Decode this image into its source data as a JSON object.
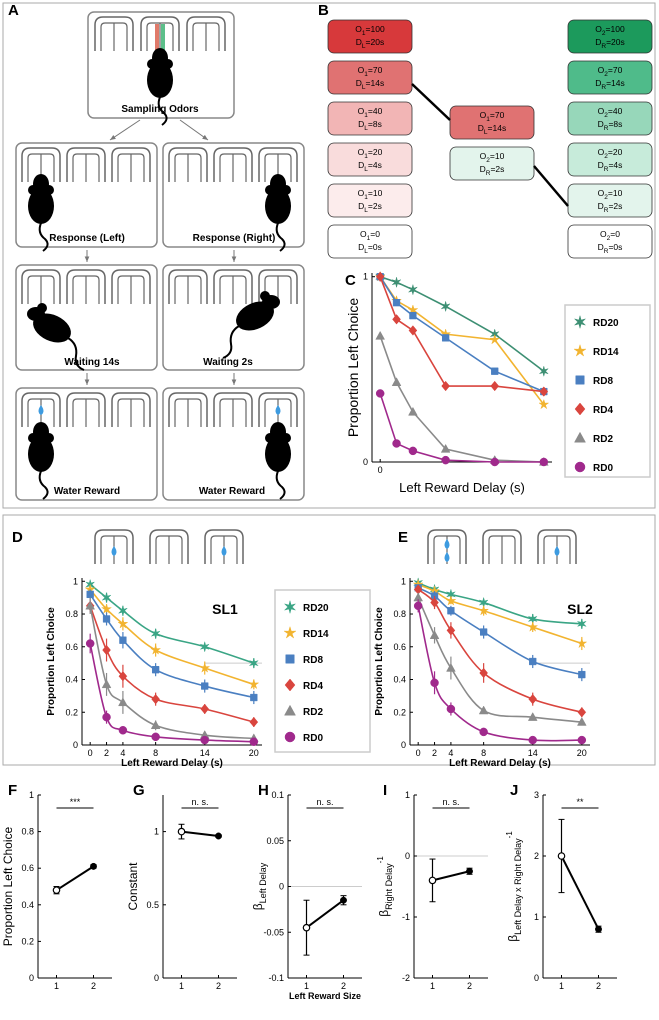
{
  "panel_labels": [
    "A",
    "B",
    "C",
    "D",
    "E",
    "F",
    "G",
    "H",
    "I",
    "J"
  ],
  "panel_a": {
    "labels": [
      "Sampling Odors",
      "Response (Left)",
      "Response (Right)",
      "Waiting 14s",
      "Waiting 2s",
      "Water Reward",
      "Water Reward"
    ]
  },
  "panel_b": {
    "left": [
      {
        "line1": [
          "O",
          "1",
          "=100"
        ],
        "line2": [
          "D",
          "L",
          "=20s"
        ],
        "color": "#d7393b"
      },
      {
        "line1": [
          "O",
          "1",
          "=70"
        ],
        "line2": [
          "D",
          "L",
          "=14s"
        ],
        "color": "#e07272"
      },
      {
        "line1": [
          "O",
          "1",
          "=40"
        ],
        "line2": [
          "D",
          "L",
          "=8s"
        ],
        "color": "#f2b5b5"
      },
      {
        "line1": [
          "O",
          "1",
          "=20"
        ],
        "line2": [
          "D",
          "L",
          "=4s"
        ],
        "color": "#f9dcdc"
      },
      {
        "line1": [
          "O",
          "1",
          "=10"
        ],
        "line2": [
          "D",
          "L",
          "=2s"
        ],
        "color": "#fcecec"
      },
      {
        "line1": [
          "O",
          "1",
          "=0"
        ],
        "line2": [
          "D",
          "L",
          "=0s"
        ],
        "color": "#ffffff"
      }
    ],
    "middle": [
      {
        "line1": [
          "O",
          "1",
          "=70"
        ],
        "line2": [
          "D",
          "L",
          "=14s"
        ],
        "color": "#e07272"
      },
      {
        "line1": [
          "O",
          "2",
          "=10"
        ],
        "line2": [
          "D",
          "R",
          "=2s"
        ],
        "color": "#e3f4ec"
      }
    ],
    "right": [
      {
        "line1": [
          "O",
          "2",
          "=100"
        ],
        "line2": [
          "D",
          "R",
          "=20s"
        ],
        "color": "#1c9a5c"
      },
      {
        "line1": [
          "O",
          "2",
          "=70"
        ],
        "line2": [
          "D",
          "R",
          "=14s"
        ],
        "color": "#4fbb8a"
      },
      {
        "line1": [
          "O",
          "2",
          "=40"
        ],
        "line2": [
          "D",
          "R",
          "=8s"
        ],
        "color": "#97d7ba"
      },
      {
        "line1": [
          "O",
          "2",
          "=20"
        ],
        "line2": [
          "D",
          "R",
          "=4s"
        ],
        "color": "#c7ebda"
      },
      {
        "line1": [
          "O",
          "2",
          "=10"
        ],
        "line2": [
          "D",
          "R",
          "=2s"
        ],
        "color": "#e3f4ec"
      },
      {
        "line1": [
          "O",
          "2",
          "=0"
        ],
        "line2": [
          "D",
          "R",
          "=0s"
        ],
        "color": "#ffffff"
      }
    ]
  },
  "chart_data": [
    {
      "type": "line",
      "ylabel": "Proportion Left Choice",
      "xlabel": "Left Reward Delay (s)",
      "x": [
        0,
        2,
        4,
        8,
        14,
        20
      ],
      "xlim": [
        -1,
        21
      ],
      "xticks": [
        0
      ],
      "ylim": [
        0,
        1.02
      ],
      "yticks": [
        0,
        1
      ],
      "legend": "right",
      "series": [
        {
          "name": "RD20",
          "color": "#3d8f73",
          "marker": "star6",
          "values": [
            1,
            0.97,
            0.93,
            0.84,
            0.69,
            0.49
          ]
        },
        {
          "name": "RD14",
          "color": "#f2b430",
          "marker": "star",
          "values": [
            1,
            0.87,
            0.82,
            0.69,
            0.66,
            0.31
          ]
        },
        {
          "name": "RD8",
          "color": "#4a7fc1",
          "marker": "square",
          "values": [
            1,
            0.86,
            0.79,
            0.67,
            0.49,
            0.38
          ]
        },
        {
          "name": "RD4",
          "color": "#d9453e",
          "marker": "diamond",
          "values": [
            1,
            0.77,
            0.71,
            0.41,
            0.41,
            0.38
          ]
        },
        {
          "name": "RD2",
          "color": "#8a8a8a",
          "marker": "triangle",
          "values": [
            0.68,
            0.43,
            0.27,
            0.07,
            0.01,
            0
          ]
        },
        {
          "name": "RD0",
          "color": "#a0298c",
          "marker": "circle",
          "values": [
            0.37,
            0.1,
            0.06,
            0.01,
            0,
            0
          ]
        }
      ]
    },
    {
      "type": "line",
      "title": "SL1",
      "smooth": true,
      "ylabel": "Proportion Left Choice",
      "xlabel": "Left Reward Delay (s)",
      "x": [
        0,
        2,
        4,
        8,
        14,
        20
      ],
      "xlim": [
        -1,
        21
      ],
      "xticks": [
        0,
        2,
        4,
        8,
        14,
        20
      ],
      "ylim": [
        0,
        1.02
      ],
      "yticks": [
        0,
        0.2,
        0.4,
        0.6,
        0.8,
        1
      ],
      "ref_line": 0.5,
      "legend": "right",
      "series": [
        {
          "name": "RD20",
          "color": "#3aa585",
          "marker": "star6",
          "values": [
            0.98,
            0.9,
            0.82,
            0.68,
            0.6,
            0.5
          ],
          "errors": [
            0.02,
            0.03,
            0.03,
            0.03,
            0.02,
            0.03
          ]
        },
        {
          "name": "RD14",
          "color": "#f2b430",
          "marker": "star",
          "values": [
            0.95,
            0.83,
            0.74,
            0.58,
            0.47,
            0.37
          ],
          "errors": [
            0.02,
            0.03,
            0.04,
            0.04,
            0.04,
            0.03
          ]
        },
        {
          "name": "RD8",
          "color": "#4a7fc1",
          "marker": "square",
          "values": [
            0.92,
            0.77,
            0.64,
            0.46,
            0.36,
            0.29
          ],
          "errors": [
            0.03,
            0.04,
            0.05,
            0.04,
            0.04,
            0.04
          ]
        },
        {
          "name": "RD4",
          "color": "#d9453e",
          "marker": "diamond",
          "values": [
            0.85,
            0.58,
            0.42,
            0.28,
            0.22,
            0.14
          ],
          "errors": [
            0.04,
            0.07,
            0.07,
            0.04,
            0.03,
            0.03
          ]
        },
        {
          "name": "RD2",
          "color": "#8a8a8a",
          "marker": "triangle",
          "values": [
            0.85,
            0.37,
            0.26,
            0.12,
            0.06,
            0.04
          ],
          "errors": [
            0.05,
            0.07,
            0.07,
            0.03,
            0.02,
            0.02
          ]
        },
        {
          "name": "RD0",
          "color": "#a0298c",
          "marker": "circle",
          "values": [
            0.62,
            0.17,
            0.09,
            0.05,
            0.03,
            0.02
          ],
          "errors": [
            0.06,
            0.04,
            0.02,
            0.02,
            0.01,
            0.01
          ]
        }
      ]
    },
    {
      "type": "line",
      "title": "SL2",
      "smooth": true,
      "ylabel": "Proportion Left Choice",
      "xlabel": "Left Reward Delay (s)",
      "x": [
        0,
        2,
        4,
        8,
        14,
        20
      ],
      "xlim": [
        -1,
        21
      ],
      "xticks": [
        0,
        2,
        4,
        8,
        14,
        20
      ],
      "ylim": [
        0,
        1.02
      ],
      "yticks": [
        0,
        0.2,
        0.4,
        0.6,
        0.8,
        1
      ],
      "ref_line": 0.5,
      "series": [
        {
          "name": "RD20",
          "color": "#3aa585",
          "marker": "star6",
          "values": [
            0.99,
            0.95,
            0.92,
            0.87,
            0.77,
            0.74
          ],
          "errors": [
            0.01,
            0.02,
            0.02,
            0.02,
            0.03,
            0.03
          ]
        },
        {
          "name": "RD14",
          "color": "#f2b430",
          "marker": "star",
          "values": [
            0.98,
            0.94,
            0.88,
            0.82,
            0.72,
            0.62
          ],
          "errors": [
            0.01,
            0.02,
            0.02,
            0.03,
            0.03,
            0.04
          ]
        },
        {
          "name": "RD8",
          "color": "#4a7fc1",
          "marker": "square",
          "values": [
            0.96,
            0.91,
            0.82,
            0.69,
            0.51,
            0.43
          ],
          "errors": [
            0.02,
            0.03,
            0.03,
            0.04,
            0.04,
            0.04
          ]
        },
        {
          "name": "RD4",
          "color": "#d9453e",
          "marker": "diamond",
          "values": [
            0.95,
            0.87,
            0.7,
            0.44,
            0.28,
            0.2
          ],
          "errors": [
            0.02,
            0.04,
            0.05,
            0.06,
            0.04,
            0.03
          ]
        },
        {
          "name": "RD2",
          "color": "#8a8a8a",
          "marker": "triangle",
          "values": [
            0.9,
            0.67,
            0.47,
            0.21,
            0.17,
            0.14
          ],
          "errors": [
            0.03,
            0.05,
            0.07,
            0.02,
            0.02,
            0.02
          ]
        },
        {
          "name": "RD0",
          "color": "#a0298c",
          "marker": "circle",
          "values": [
            0.85,
            0.38,
            0.22,
            0.08,
            0.03,
            0.03
          ],
          "errors": [
            0.04,
            0.07,
            0.04,
            0.01,
            0.01,
            0.01
          ]
        }
      ]
    },
    {
      "type": "line",
      "ylabel": "Proportion Left Choice",
      "x": [
        1,
        2
      ],
      "xlim": [
        0.5,
        2.5
      ],
      "xticks": [
        1,
        2
      ],
      "ylim": [
        0,
        1
      ],
      "yticks": [
        0,
        0.2,
        0.4,
        0.6,
        0.8,
        1
      ],
      "annotation": "***",
      "open_markers": [
        0
      ],
      "series": [
        {
          "color": "#000000",
          "marker": "circle",
          "values": [
            0.48,
            0.61
          ],
          "errors": [
            0.02,
            0.01
          ]
        }
      ]
    },
    {
      "type": "line",
      "ylabel": "Constant",
      "x": [
        1,
        2
      ],
      "xlim": [
        0.5,
        2.5
      ],
      "xticks": [
        1,
        2
      ],
      "ylim": [
        0,
        1.25
      ],
      "yticks": [
        0,
        0.5,
        1
      ],
      "annotation": "n. s.",
      "open_markers": [
        0
      ],
      "series": [
        {
          "color": "#000000",
          "marker": "circle",
          "values": [
            1,
            0.97
          ],
          "errors": [
            0.05,
            0.01
          ]
        }
      ]
    },
    {
      "type": "line",
      "ylabel": {
        "symbol": "β",
        "subscript": "Left Delay"
      },
      "xlabel": "Left Reward Size",
      "x": [
        1,
        2
      ],
      "xlim": [
        0.5,
        2.5
      ],
      "xticks": [
        1,
        2
      ],
      "ylim": [
        -0.1,
        0.1
      ],
      "yticks": [
        -0.1,
        -0.05,
        0,
        0.05,
        0.1
      ],
      "ref_line": 0,
      "annotation": "n. s.",
      "open_markers": [
        0
      ],
      "series": [
        {
          "color": "#000000",
          "marker": "circle",
          "values": [
            -0.045,
            -0.015
          ],
          "errors": [
            0.03,
            0.005
          ]
        }
      ]
    },
    {
      "type": "line",
      "ylabel": {
        "symbol": "β",
        "subscript": "Right Delay",
        "superscript": "-1"
      },
      "x": [
        1,
        2
      ],
      "xlim": [
        0.5,
        2.5
      ],
      "xticks": [
        1,
        2
      ],
      "ylim": [
        -2,
        1
      ],
      "yticks": [
        -2,
        -1,
        0,
        1
      ],
      "ref_line": 0,
      "annotation": "n. s.",
      "open_markers": [
        0
      ],
      "series": [
        {
          "color": "#000000",
          "marker": "circle",
          "values": [
            -0.4,
            -0.25
          ],
          "errors": [
            0.35,
            0.05
          ]
        }
      ]
    },
    {
      "type": "line",
      "ylabel": {
        "symbol": "β",
        "subscript": "Left Delay x Right Delay",
        "superscript": "-1"
      },
      "x": [
        1,
        2
      ],
      "xlim": [
        0.5,
        2.5
      ],
      "xticks": [
        1,
        2
      ],
      "ylim": [
        0,
        3
      ],
      "yticks": [
        0,
        1,
        2,
        3
      ],
      "annotation": "**",
      "open_markers": [
        0
      ],
      "series": [
        {
          "color": "#000000",
          "marker": "circle",
          "values": [
            2,
            0.8
          ],
          "errors": [
            0.6,
            0.05
          ]
        }
      ]
    }
  ]
}
